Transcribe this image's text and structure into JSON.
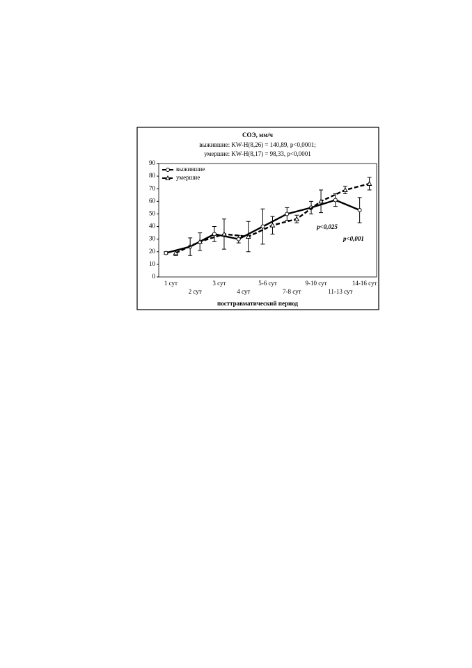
{
  "chart_data": {
    "type": "line",
    "title": "СОЭ, мм/ч",
    "subtitle": [
      "выжившие:  KW-H(8,26) = 140,89, p<0,0001;",
      "умершие:  KW-H(8,17) = 98,33, p<0,0001"
    ],
    "x_label": "посттравматический период",
    "categories": [
      "1 сут",
      "2 сут",
      "3 сут",
      "4 сут",
      "5-6 сут",
      "7-8 сут",
      "9-10 сут",
      "11-13 сут",
      "14-16 сут"
    ],
    "series": [
      {
        "name": "выжившие",
        "color": "#000000",
        "line_style": "solid",
        "marker": "circle",
        "values": [
          19,
          24,
          34,
          30,
          40,
          50,
          55,
          61,
          53
        ],
        "errors": [
          1,
          7,
          6,
          3,
          14,
          5,
          5,
          5,
          10
        ]
      },
      {
        "name": "умершие",
        "color": "#000000",
        "line_style": "dashed",
        "marker": "triangle",
        "values": [
          19,
          28,
          34,
          32,
          41,
          46,
          60,
          69,
          74
        ],
        "errors": [
          2,
          7,
          12,
          12,
          7,
          3,
          9,
          3,
          5
        ]
      }
    ],
    "annotations": [
      "p<0,025",
      "p<0,001"
    ],
    "ylim": [
      0,
      90
    ],
    "yticks": [
      0,
      10,
      20,
      30,
      40,
      50,
      60,
      70,
      80,
      90
    ],
    "legend": "upper left"
  }
}
